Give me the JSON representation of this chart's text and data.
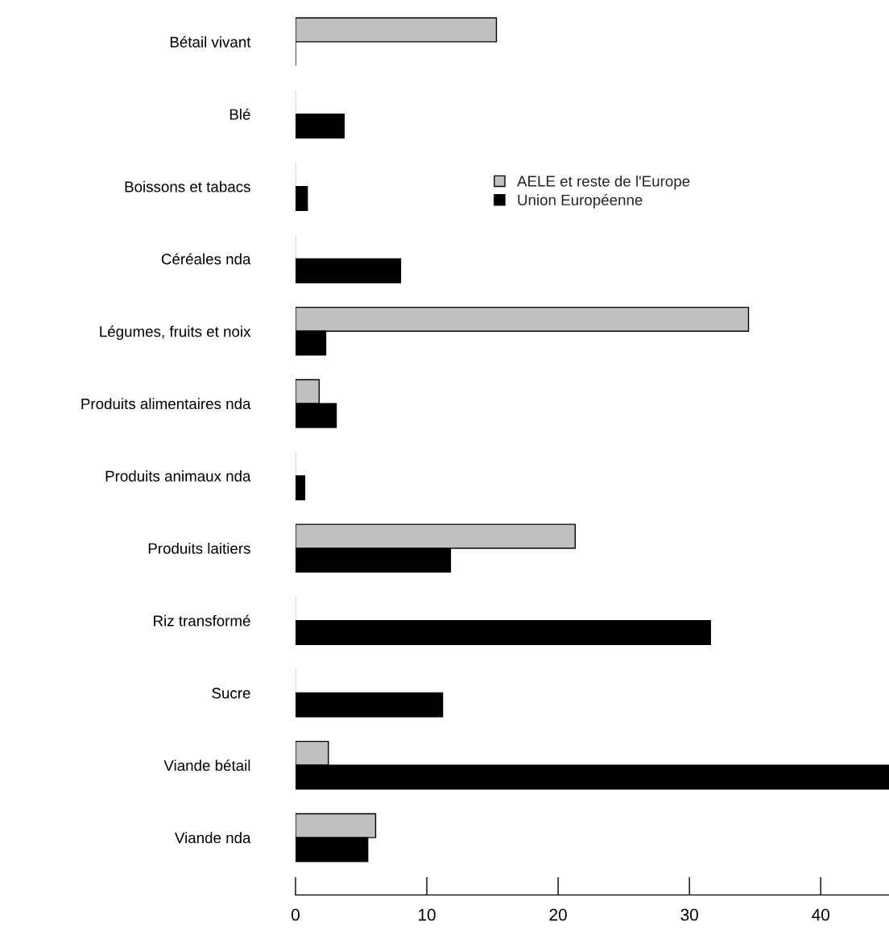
{
  "chart_data": {
    "type": "bar",
    "orientation": "horizontal",
    "categories": [
      "Bétail vivant",
      "Blé",
      "Boissons et tabacs",
      "Céréales nda",
      "Légumes, fruits et noix",
      "Produits alimentaires nda",
      "Produits animaux nda",
      "Produits laitiers",
      "Riz transformé",
      "Sucre",
      "Viande bétail",
      "Viande nda"
    ],
    "series": [
      {
        "name": "AELE et reste de l'Europe",
        "color": "#c0c0c0",
        "values": [
          15.3,
          0,
          0,
          0,
          34.5,
          1.8,
          0,
          21.3,
          0,
          0,
          2.5,
          6.1
        ]
      },
      {
        "name": "Union Européenne",
        "color": "#000000",
        "values": [
          0,
          3.7,
          0.9,
          8.0,
          2.3,
          3.1,
          0.7,
          11.8,
          31.6,
          11.2,
          45.2,
          5.5
        ]
      }
    ],
    "xlim": [
      0,
      45.2
    ],
    "xticks": [
      0,
      10,
      20,
      30,
      40
    ],
    "grid": false,
    "legend": "top"
  }
}
